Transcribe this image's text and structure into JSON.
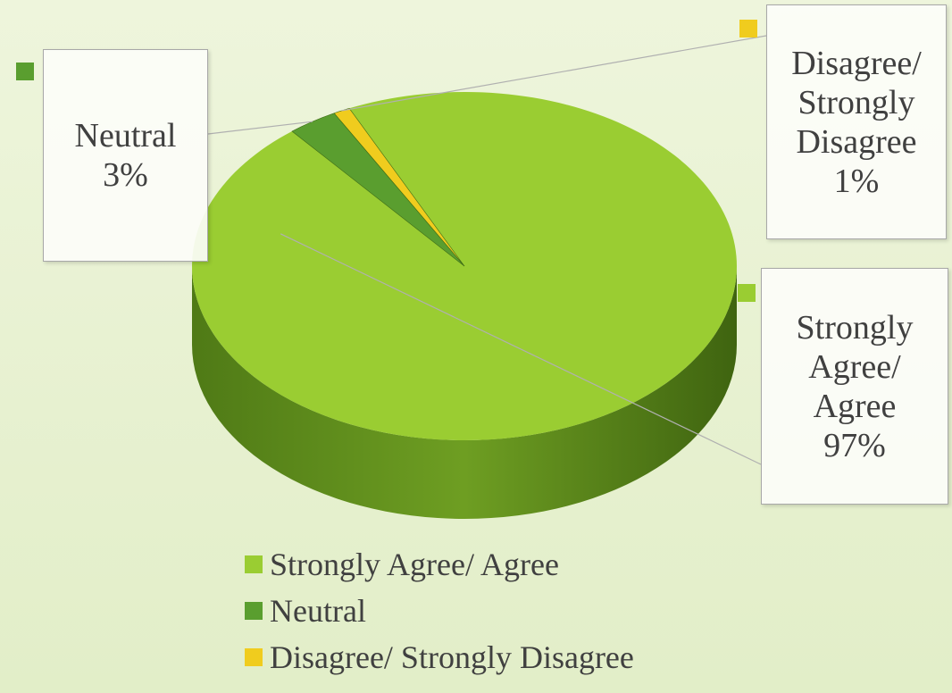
{
  "chart_data": {
    "type": "pie",
    "categories": [
      "Strongly Agree/ Agree",
      "Neutral",
      "Disagree/ Strongly Disagree"
    ],
    "values": [
      97,
      3,
      1
    ],
    "value_labels": [
      "97%",
      "3%",
      "1%"
    ],
    "colors": [
      "#9acd32",
      "#5a9e2f",
      "#f0cc1e"
    ],
    "legend": "bottom"
  }
}
